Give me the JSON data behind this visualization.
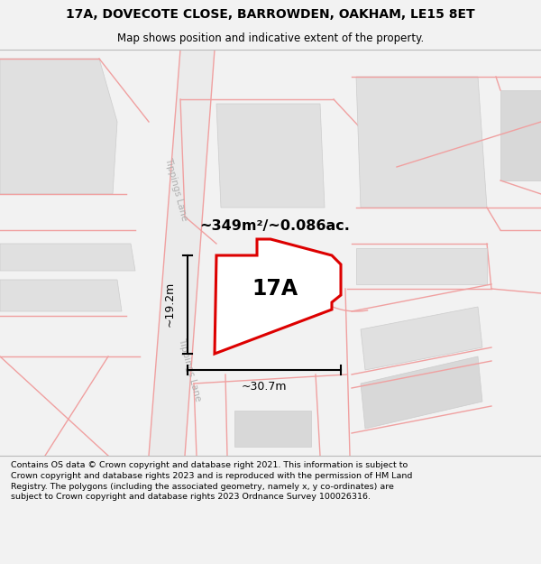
{
  "title_line1": "17A, DOVECOTE CLOSE, BARROWDEN, OAKHAM, LE15 8ET",
  "title_line2": "Map shows position and indicative extent of the property.",
  "area_text": "~349m²/~0.086ac.",
  "label_17a": "17A",
  "dim_vertical": "~19.2m",
  "dim_horizontal": "~30.7m",
  "road_label": "Tippings Lane",
  "footer_text": "Contains OS data © Crown copyright and database right 2021. This information is subject to Crown copyright and database rights 2023 and is reproduced with the permission of HM Land Registry. The polygons (including the associated geometry, namely x, y co-ordinates) are subject to Crown copyright and database rights 2023 Ordnance Survey 100026316.",
  "bg_color": "#f2f2f2",
  "map_bg": "#ffffff",
  "road_color": "#f0a0a0",
  "road_fill": "#efefef",
  "red_outline": "#dd0000",
  "bldg_fill": "#e0e0e0",
  "bldg_edge": "#cccccc",
  "title_bg": "#eeeeee",
  "footer_bg": "#eeeeee",
  "sep_color": "#bbbbbb"
}
